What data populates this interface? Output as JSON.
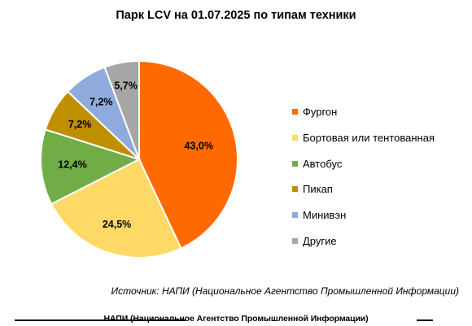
{
  "chart_data": {
    "type": "pie",
    "title": "Парк LCV на 01.07.2025 по типам техники",
    "categories": [
      "Фургон",
      "Бортовая или тентованная",
      "Автобус",
      "Пикап",
      "Минивэн",
      "Другие"
    ],
    "values": [
      43.0,
      24.5,
      12.4,
      7.2,
      7.2,
      5.7
    ],
    "value_labels": [
      "43,0%",
      "24,5%",
      "12,4%",
      "7,2%",
      "7,2%",
      "5,7%"
    ],
    "colors": [
      "#ff6a00",
      "#ffd966",
      "#70ad47",
      "#bf8f00",
      "#8faadc",
      "#a6a6a6"
    ],
    "legend_position": "right"
  },
  "source": "Источник: НАПИ (Национальное Агентство Промышленной Информации)",
  "footer": "НАПИ (Национальное Агентство Промышленной Информации)"
}
